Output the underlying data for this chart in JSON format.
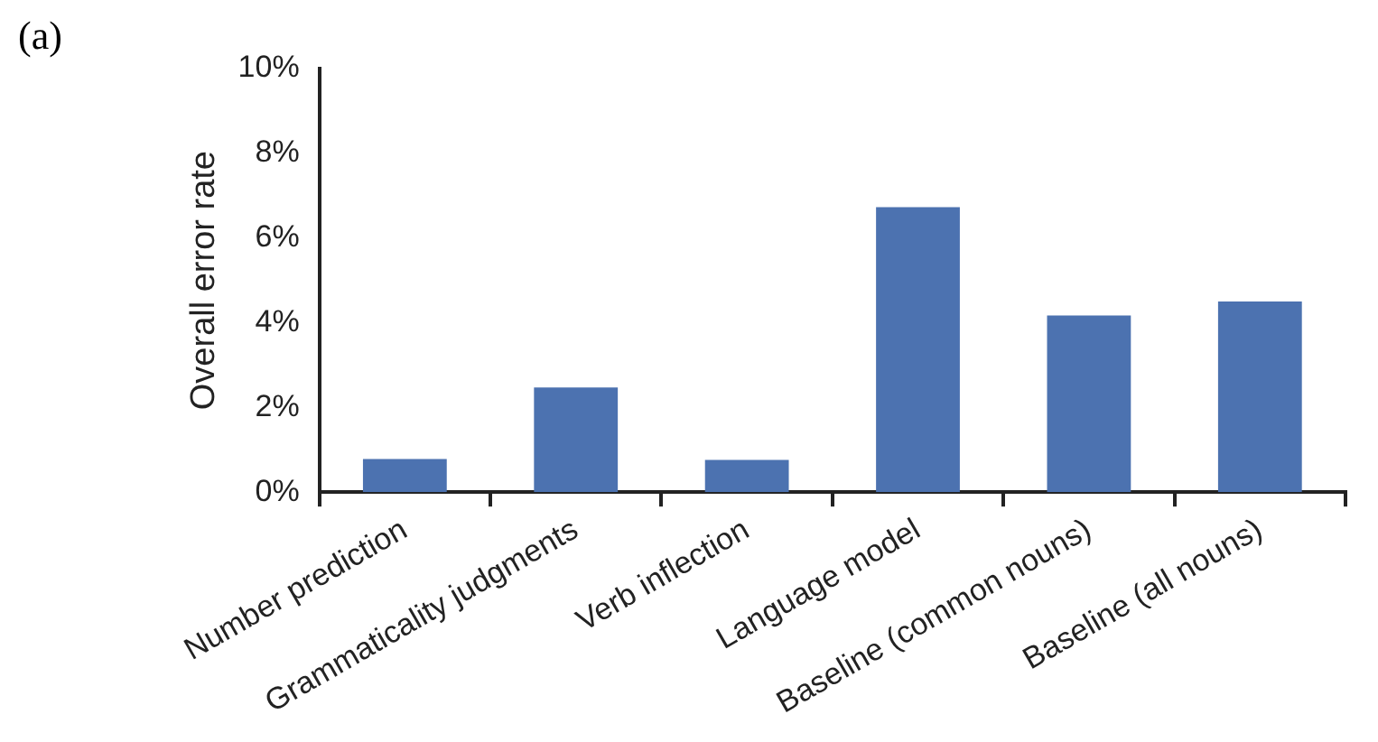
{
  "chart_data": {
    "type": "bar",
    "ylabel": "Overall error rate",
    "annotations": [
      "(a)"
    ],
    "categories": [
      "Number prediction",
      "Grammaticality judgments",
      "Verb inflection",
      "Language model",
      "Baseline (common nouns)",
      "Baseline (all nouns)"
    ],
    "values": [
      0.78,
      2.47,
      0.76,
      6.73,
      4.17,
      4.5
    ],
    "color": "#4c72b0",
    "ylim": [
      0,
      10
    ],
    "yticks": [
      {
        "value": 0,
        "label": "0%"
      },
      {
        "value": 2,
        "label": "2%"
      },
      {
        "value": 4,
        "label": "4%"
      },
      {
        "value": 6,
        "label": "6%"
      },
      {
        "value": 8,
        "label": "8%"
      },
      {
        "value": 10,
        "label": "10%"
      }
    ],
    "grid": false,
    "legend": false
  }
}
